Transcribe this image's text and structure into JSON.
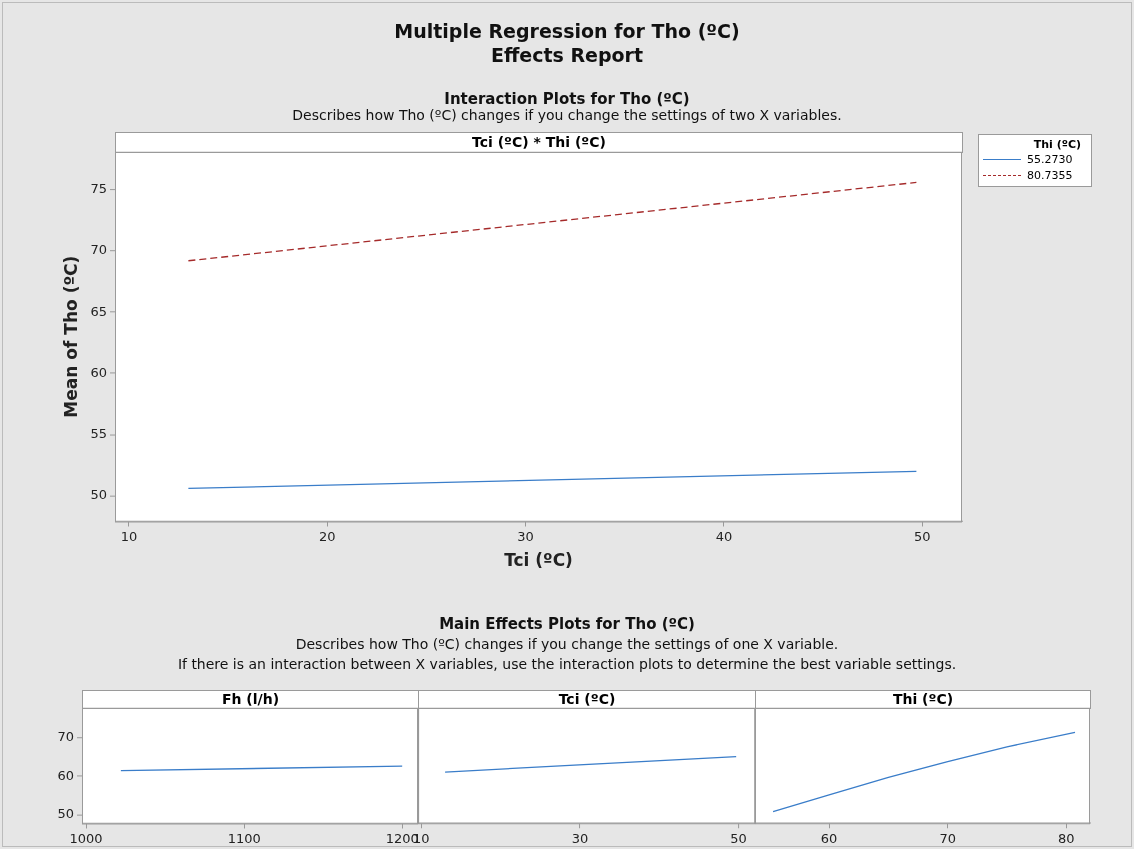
{
  "chart_data": [
    {
      "type": "line",
      "title": "Tci (ºC) * Thi (ºC)",
      "annotations": [
        "Multiple Regression for Tho (ºC)",
        "Effects Report",
        "Interaction Plots for Tho (ºC)",
        "Describes how Tho (ºC) changes if you change the settings of two X variables."
      ],
      "xlabel": "Tci (ºC)",
      "ylabel": "Mean of Tho (ºC)",
      "legend_title": "Thi (ºC)",
      "legend": "top right",
      "marker": "none",
      "grid": false,
      "x": [
        13,
        49.7
      ],
      "series": [
        {
          "name": "55.2730",
          "color": "#3a7dc9",
          "line_style": "solid",
          "values": [
            50.6,
            52.0
          ]
        },
        {
          "name": "80.7355",
          "color": "#a52a2a",
          "line_style": "dashed",
          "values": [
            69.2,
            75.6
          ]
        }
      ],
      "xlim": [
        9.3,
        52.0
      ],
      "xticks": [
        10,
        20,
        30,
        40,
        50
      ],
      "ylim": [
        47.9,
        78.1
      ],
      "yticks": [
        50,
        55,
        60,
        65,
        70,
        75
      ]
    },
    {
      "type": "line",
      "title": "Fh (l/h)",
      "annotations": [
        "Main Effects Plots for Tho (ºC)",
        "Describes how Tho (ºC) changes if you change the settings of one X variable.",
        "If there is an interaction between X variables, use the interaction plots to determine the best variable settings."
      ],
      "marker": "none",
      "grid": false,
      "x": [
        1022,
        1200
      ],
      "series": [
        {
          "color": "#3a7dc9",
          "values": [
            61.4,
            62.6
          ]
        }
      ],
      "xlim": [
        997.4,
        1210
      ],
      "xticks": [
        1000,
        1100,
        1200
      ],
      "ylim": [
        47.8,
        77.6
      ],
      "yticks": [
        50,
        60,
        70
      ]
    },
    {
      "type": "line",
      "title": "Tci (ºC)",
      "marker": "none",
      "grid": false,
      "tick_labels": "x",
      "x": [
        13,
        49.7
      ],
      "series": [
        {
          "color": "#3a7dc9",
          "values": [
            61.0,
            65.0
          ]
        }
      ],
      "xlim": [
        9.6,
        52.1
      ],
      "xticks": [
        10,
        30,
        50
      ],
      "ylim": [
        47.8,
        77.6
      ],
      "yticks": [
        50,
        60,
        70
      ]
    },
    {
      "type": "line",
      "title": "Thi (ºC)",
      "marker": "none",
      "grid": false,
      "tick_labels": "x",
      "x": [
        55.273,
        60,
        65,
        70,
        75,
        80.7355
      ],
      "series": [
        {
          "color": "#3a7dc9",
          "values": [
            50.8,
            55.1,
            59.6,
            63.7,
            67.5,
            71.2
          ]
        }
      ],
      "xlim": [
        53.75,
        82.0
      ],
      "xticks": [
        60,
        70,
        80
      ],
      "ylim": [
        47.8,
        77.6
      ],
      "yticks": [
        50,
        60,
        70
      ]
    }
  ]
}
